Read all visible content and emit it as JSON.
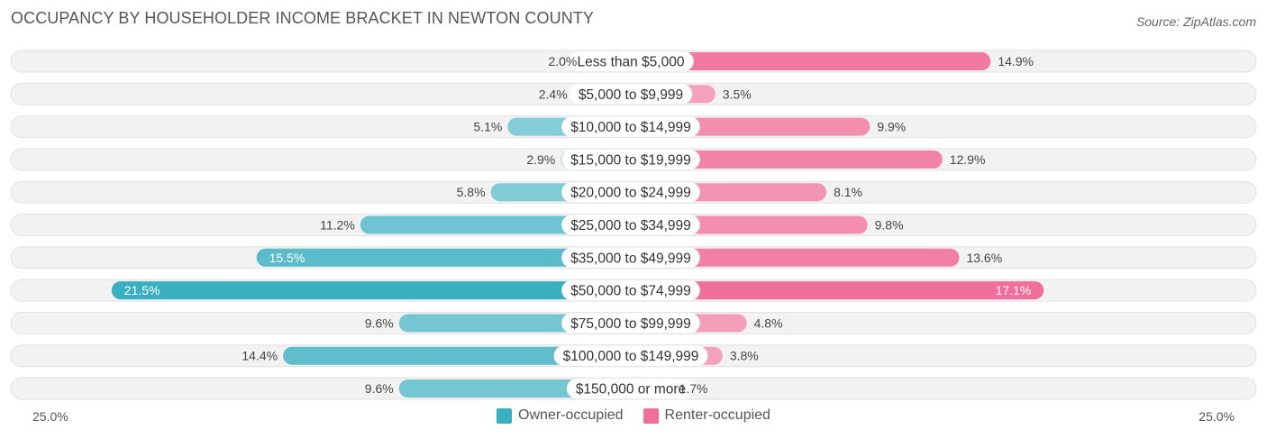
{
  "title": "OCCUPANCY BY HOUSEHOLDER INCOME BRACKET IN NEWTON COUNTY",
  "source": "Source: ZipAtlas.com",
  "colors": {
    "owner": "#3aafc0",
    "owner_light": "#8dd0db",
    "renter": "#f06f9a",
    "renter_light": "#f6a6c0",
    "track": "#eeeeee"
  },
  "chart_data": {
    "type": "bar",
    "orientation": "horizontal-diverging",
    "categories": [
      "Less than $5,000",
      "$5,000 to $9,999",
      "$10,000 to $14,999",
      "$15,000 to $19,999",
      "$20,000 to $24,999",
      "$25,000 to $34,999",
      "$35,000 to $49,999",
      "$50,000 to $74,999",
      "$75,000 to $99,999",
      "$100,000 to $149,999",
      "$150,000 or more"
    ],
    "series": [
      {
        "name": "Owner-occupied",
        "values": [
          2.0,
          2.4,
          5.1,
          2.9,
          5.8,
          11.2,
          15.5,
          21.5,
          9.6,
          14.4,
          9.6
        ],
        "labels": [
          "2.0%",
          "2.4%",
          "5.1%",
          "2.9%",
          "5.8%",
          "11.2%",
          "15.5%",
          "21.5%",
          "9.6%",
          "14.4%",
          "9.6%"
        ]
      },
      {
        "name": "Renter-occupied",
        "values": [
          14.9,
          3.5,
          9.9,
          12.9,
          8.1,
          9.8,
          13.6,
          17.1,
          4.8,
          3.8,
          1.7
        ],
        "labels": [
          "14.9%",
          "3.5%",
          "9.9%",
          "12.9%",
          "8.1%",
          "9.8%",
          "13.6%",
          "17.1%",
          "4.8%",
          "3.8%",
          "1.7%"
        ]
      }
    ],
    "xlim": [
      -25,
      25
    ],
    "axis_left_label": "25.0%",
    "axis_right_label": "25.0%",
    "legend_position": "bottom-center"
  }
}
